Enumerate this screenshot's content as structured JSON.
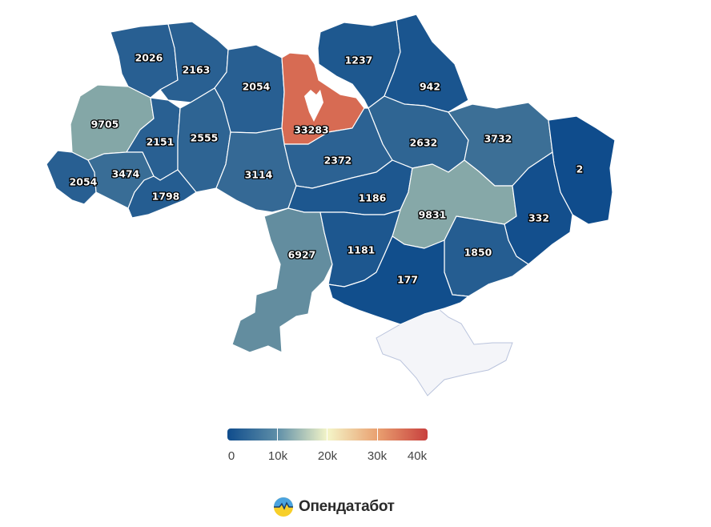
{
  "map": {
    "scale_colors": {
      "low": "#0f4c8c",
      "mid": "#88aaa8",
      "pale": "#f4f5c8",
      "high": "#c8403e"
    },
    "no_data_color": "#f4f5f9",
    "regions": [
      {
        "id": "volyn",
        "value": 2026
      },
      {
        "id": "rivne",
        "value": 2163
      },
      {
        "id": "zhytomyr",
        "value": 2054
      },
      {
        "id": "chernihiv",
        "value": 1237
      },
      {
        "id": "sumy",
        "value": 942
      },
      {
        "id": "lviv",
        "value": 9705
      },
      {
        "id": "ternopil",
        "value": 2151
      },
      {
        "id": "khmelnytskyi",
        "value": 2555
      },
      {
        "id": "kyiv",
        "value": 33283
      },
      {
        "id": "poltava",
        "value": 2632
      },
      {
        "id": "kharkiv",
        "value": 3732
      },
      {
        "id": "luhansk",
        "value": 2
      },
      {
        "id": "zakarpattia",
        "value": 2054
      },
      {
        "id": "ivano-frankivsk",
        "value": 3474
      },
      {
        "id": "chernivtsi",
        "value": 1798
      },
      {
        "id": "vinnytsia",
        "value": 3114
      },
      {
        "id": "cherkasy",
        "value": 2372
      },
      {
        "id": "kirovohrad",
        "value": 1186
      },
      {
        "id": "dnipropetrovsk",
        "value": 9831
      },
      {
        "id": "donetsk",
        "value": 332
      },
      {
        "id": "odesa",
        "value": 6927
      },
      {
        "id": "mykolaiv",
        "value": 1181
      },
      {
        "id": "zaporizhzhia",
        "value": 1850
      },
      {
        "id": "kherson",
        "value": 177
      }
    ]
  },
  "legend": {
    "min": 0,
    "max": 40000,
    "ticks": [
      {
        "value": 0,
        "label": "0"
      },
      {
        "value": 10000,
        "label": "10k"
      },
      {
        "value": 20000,
        "label": "20k"
      },
      {
        "value": 30000,
        "label": "30k"
      },
      {
        "value": 40000,
        "label": "40k"
      }
    ]
  },
  "brand": {
    "name": "Опендатабот",
    "icon": "opendatabot-logo-icon"
  }
}
